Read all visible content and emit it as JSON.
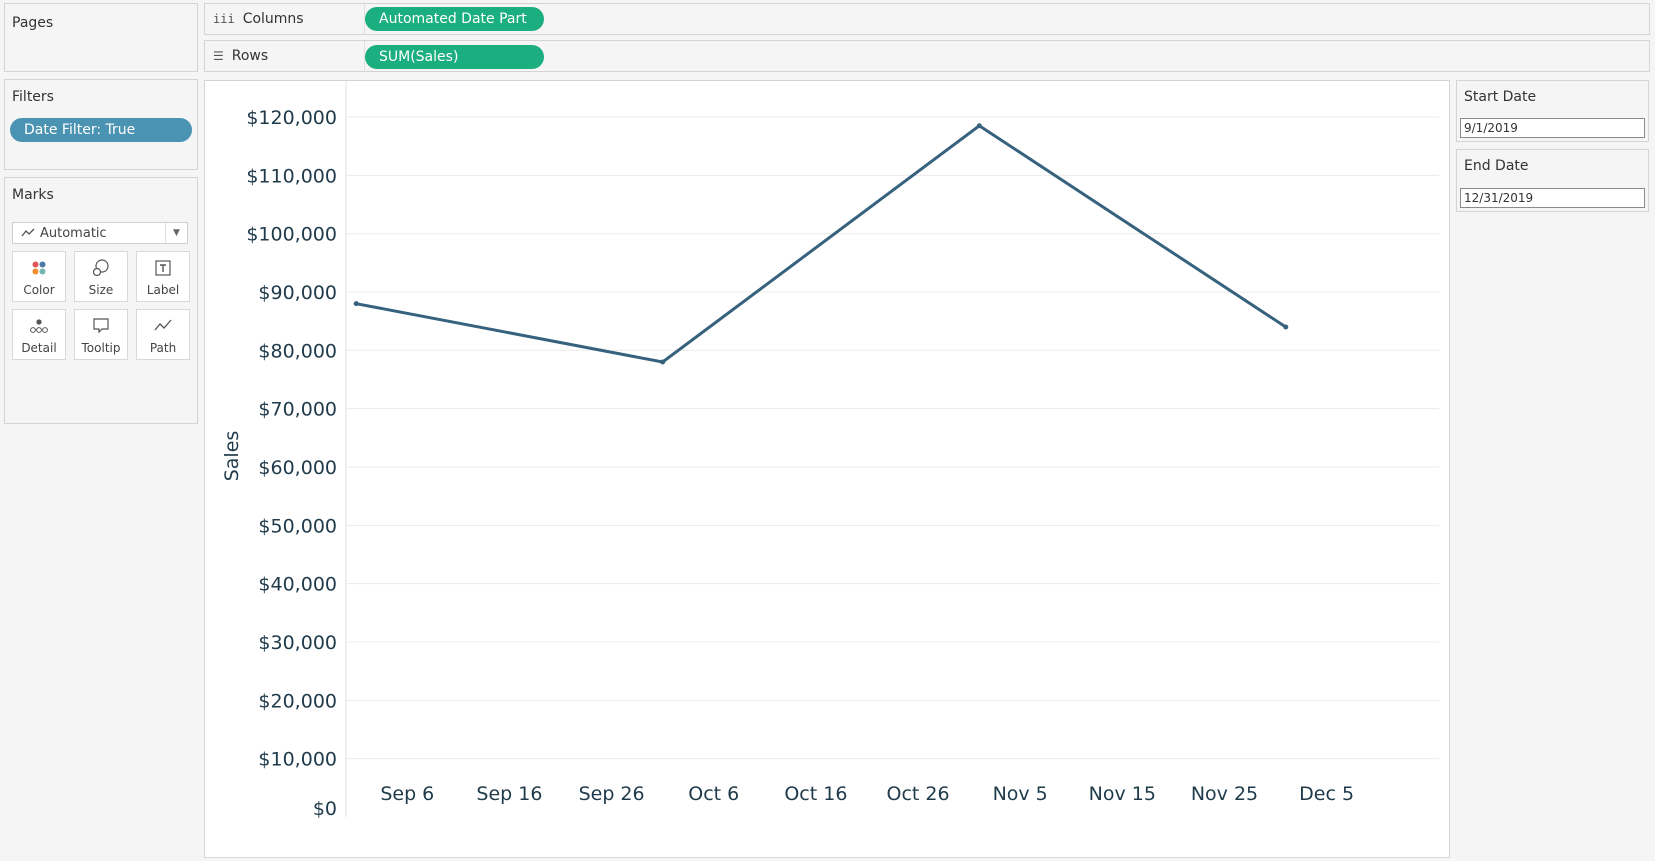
{
  "pages": {
    "title": "Pages"
  },
  "columns_shelf": {
    "label": "Columns",
    "icon": "columns-icon",
    "pill": "Automated Date Part"
  },
  "rows_shelf": {
    "label": "Rows",
    "icon": "rows-icon",
    "pill": "SUM(Sales)"
  },
  "filters": {
    "title": "Filters",
    "pill": "Date Filter: True"
  },
  "marks": {
    "title": "Marks",
    "type": "Automatic",
    "buttons": [
      {
        "label": "Color",
        "icon": "color-icon"
      },
      {
        "label": "Size",
        "icon": "size-icon"
      },
      {
        "label": "Label",
        "icon": "label-icon"
      },
      {
        "label": "Detail",
        "icon": "detail-icon"
      },
      {
        "label": "Tooltip",
        "icon": "tooltip-icon"
      },
      {
        "label": "Path",
        "icon": "path-icon"
      }
    ]
  },
  "parameters": [
    {
      "title": "Start Date",
      "value": "9/1/2019"
    },
    {
      "title": "End Date",
      "value": "12/31/2019"
    }
  ],
  "colors": {
    "pill_green": "#1bae7f",
    "pill_blue": "#4a93b2",
    "line": "#36627e"
  },
  "chart_data": {
    "type": "line",
    "ylabel": "Sales",
    "ylim": [
      0,
      120000
    ],
    "yticks": [
      "$0",
      "$10,000",
      "$20,000",
      "$30,000",
      "$40,000",
      "$50,000",
      "$60,000",
      "$70,000",
      "$80,000",
      "$90,000",
      "$100,000",
      "$110,000",
      "$120,000"
    ],
    "xticks": [
      "Sep 6",
      "Sep 16",
      "Sep 26",
      "Oct 6",
      "Oct 16",
      "Oct 26",
      "Nov 5",
      "Nov 15",
      "Nov 25",
      "Dec 5"
    ],
    "points": [
      {
        "x": "2019-09-01",
        "y": 88000
      },
      {
        "x": "2019-10-01",
        "y": 78000
      },
      {
        "x": "2019-11-01",
        "y": 118500
      },
      {
        "x": "2019-12-01",
        "y": 84000
      }
    ],
    "grid": true
  }
}
